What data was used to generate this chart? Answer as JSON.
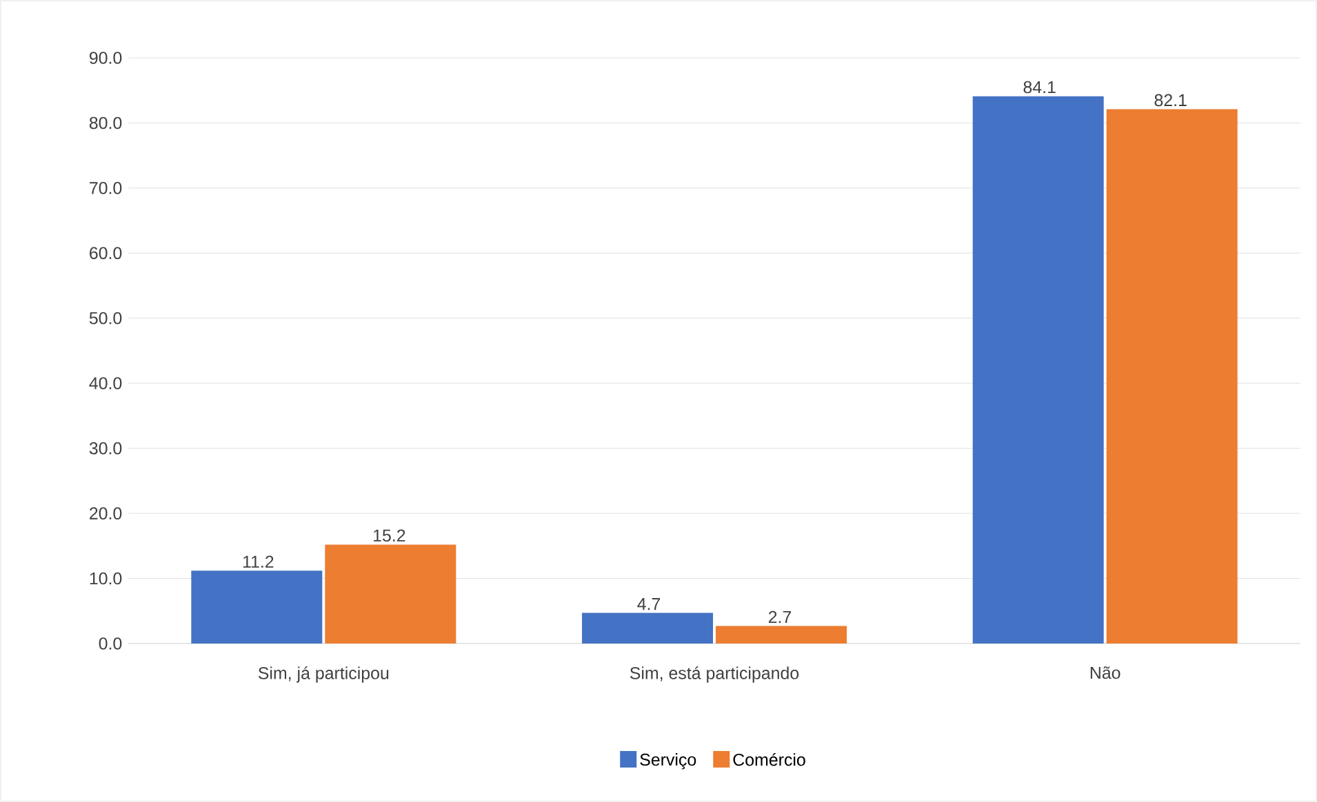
{
  "chart_data": {
    "type": "bar",
    "categories": [
      "Sim, já participou",
      "Sim, está participando",
      "Não"
    ],
    "series": [
      {
        "name": "Serviço",
        "color": "#4472c4",
        "values": [
          11.2,
          4.7,
          84.1
        ]
      },
      {
        "name": "Comércio",
        "color": "#ed7d31",
        "values": [
          15.2,
          2.7,
          82.1
        ]
      }
    ],
    "ylim": [
      0,
      90
    ],
    "yticks": [
      {
        "value": 0,
        "label": "0.0"
      },
      {
        "value": 10,
        "label": "10.0"
      },
      {
        "value": 20,
        "label": "20.0"
      },
      {
        "value": 30,
        "label": "30.0"
      },
      {
        "value": 40,
        "label": "40.0"
      },
      {
        "value": 50,
        "label": "50.0"
      },
      {
        "value": 60,
        "label": "60.0"
      },
      {
        "value": 70,
        "label": "70.0"
      },
      {
        "value": 80,
        "label": "80.0"
      },
      {
        "value": 90,
        "label": "90.0"
      }
    ],
    "grid": "y",
    "legend": "bottom",
    "data_labels": true
  }
}
